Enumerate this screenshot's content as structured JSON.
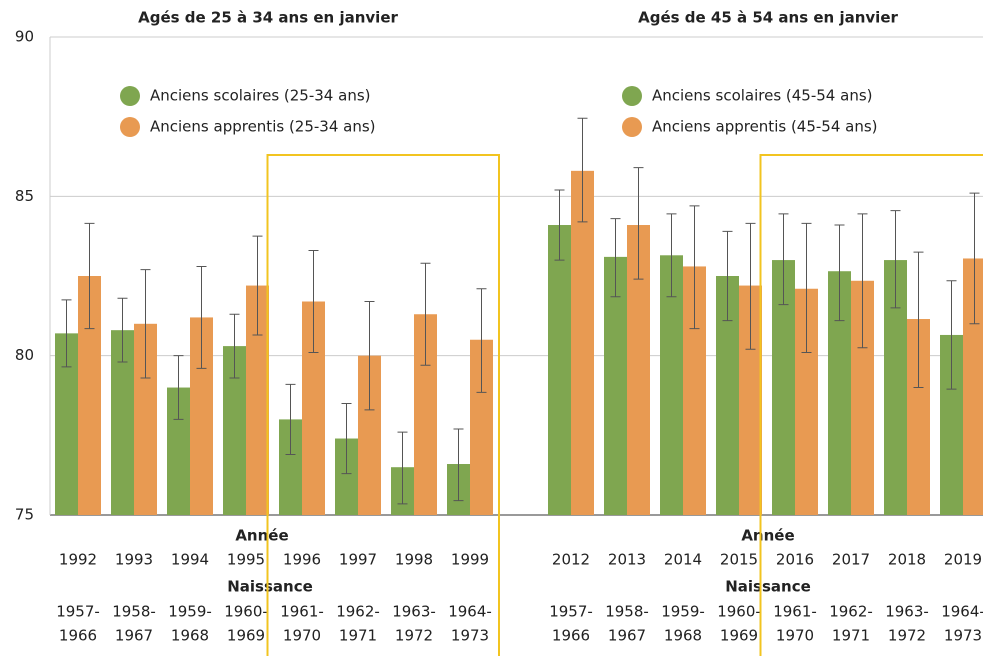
{
  "chart_data": [
    {
      "type": "bar",
      "title": "Agés de 25 à 34 ans en janvier",
      "x_label": "Année",
      "x2_label": "Naissance",
      "categories": [
        "1992",
        "1993",
        "1994",
        "1995",
        "1996",
        "1997",
        "1998",
        "1999"
      ],
      "birth_cohorts": [
        [
          "1957-",
          "1966"
        ],
        [
          "1958-",
          "1967"
        ],
        [
          "1959-",
          "1968"
        ],
        [
          "1960-",
          "1969"
        ],
        [
          "1961-",
          "1970"
        ],
        [
          "1962-",
          "1971"
        ],
        [
          "1963-",
          "1972"
        ],
        [
          "1964-",
          "1973"
        ]
      ],
      "series": [
        {
          "name": "Anciens scolaires (25-34 ans)",
          "color": "#7fa650",
          "values": [
            80.7,
            80.8,
            79.0,
            80.3,
            78.0,
            77.4,
            76.5,
            76.6
          ],
          "err_low": [
            79.65,
            79.8,
            78.0,
            79.3,
            76.9,
            76.3,
            75.35,
            75.45
          ],
          "err_high": [
            81.75,
            81.8,
            80.0,
            81.3,
            79.1,
            78.5,
            77.6,
            77.7
          ]
        },
        {
          "name": "Anciens apprentis (25-34 ans)",
          "color": "#e89a52",
          "values": [
            82.5,
            81.0,
            81.2,
            82.2,
            81.7,
            80.0,
            81.3,
            80.5
          ],
          "err_low": [
            80.85,
            79.3,
            79.6,
            80.65,
            80.1,
            78.3,
            79.7,
            78.85
          ],
          "err_high": [
            84.15,
            82.7,
            82.8,
            83.75,
            83.3,
            81.7,
            82.9,
            82.1
          ]
        }
      ],
      "ylim": [
        75,
        90
      ],
      "yticks": [
        75,
        80,
        85,
        90
      ],
      "grid": true
    },
    {
      "type": "bar",
      "title": "Agés de 45 à 54 ans en janvier",
      "x_label": "Année",
      "x2_label": "Naissance",
      "categories": [
        "2012",
        "2013",
        "2014",
        "2015",
        "2016",
        "2017",
        "2018",
        "2019"
      ],
      "birth_cohorts": [
        [
          "1957-",
          "1966"
        ],
        [
          "1958-",
          "1967"
        ],
        [
          "1959-",
          "1968"
        ],
        [
          "1960-",
          "1969"
        ],
        [
          "1961-",
          "1970"
        ],
        [
          "1962-",
          "1971"
        ],
        [
          "1963-",
          "1972"
        ],
        [
          "1964-",
          "1973"
        ]
      ],
      "series": [
        {
          "name": "Anciens scolaires (45-54 ans)",
          "color": "#7fa650",
          "values": [
            84.1,
            83.1,
            83.15,
            82.5,
            83.0,
            82.65,
            83.0,
            80.65
          ],
          "err_low": [
            83.0,
            81.85,
            81.85,
            81.1,
            81.6,
            81.1,
            81.5,
            78.95
          ],
          "err_high": [
            85.2,
            84.3,
            84.45,
            83.9,
            84.45,
            84.1,
            84.55,
            82.35
          ]
        },
        {
          "name": "Anciens apprentis (45-54 ans)",
          "color": "#e89a52",
          "values": [
            85.8,
            84.1,
            82.8,
            82.2,
            82.1,
            82.35,
            81.15,
            83.05
          ],
          "err_low": [
            84.2,
            82.4,
            80.85,
            80.2,
            80.1,
            80.25,
            79.0,
            81.0
          ],
          "err_high": [
            87.45,
            85.9,
            84.7,
            84.15,
            84.15,
            84.45,
            83.25,
            85.1
          ]
        }
      ],
      "ylim": [
        75,
        90
      ],
      "grid": true
    }
  ]
}
